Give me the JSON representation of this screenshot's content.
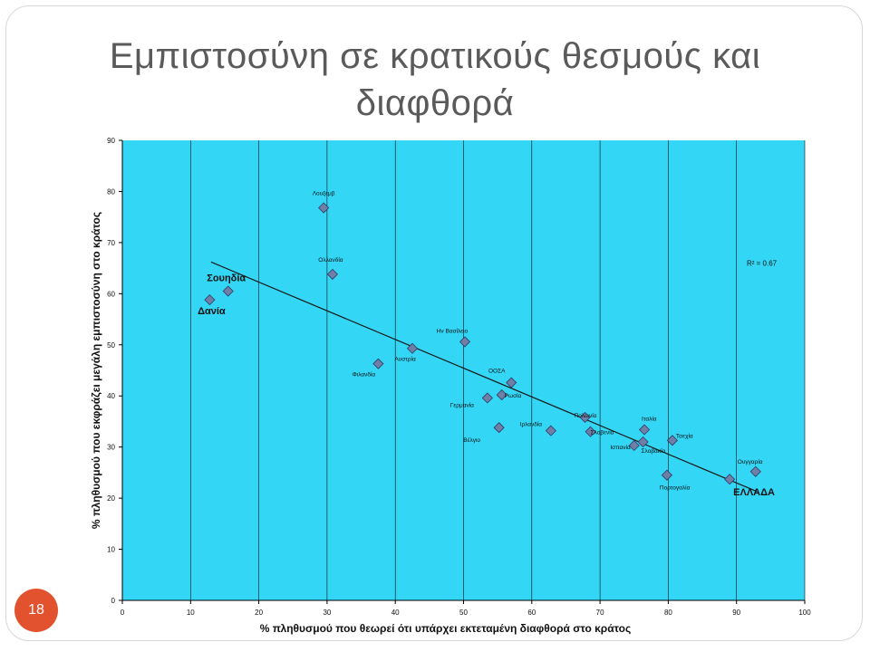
{
  "slide": {
    "title_line1": "Εμπιστοσύνη σε κρατικούς θεσμούς και",
    "title_line2": "διαφθορά",
    "number": "18"
  },
  "colors": {
    "plot_bg": "#33d6f5",
    "marker": "#6f7fa8",
    "marker_stroke": "#2e3a60",
    "grid": "#111111",
    "slide_number_bg": "#e2522f"
  },
  "chart_data": {
    "type": "scatter",
    "xlabel": "% πληθυσμού που θεωρεί ότι υπάρχει εκτεταμένη διαφθορά στο κράτος",
    "ylabel": "% πληθυσμού που εκφράζει μεγάλη εμπιστοσύνη στο κράτος",
    "xlim": [
      0,
      100
    ],
    "ylim": [
      0,
      90
    ],
    "xticks": [
      0,
      10,
      20,
      30,
      40,
      50,
      60,
      70,
      80,
      90,
      100
    ],
    "yticks": [
      0,
      10,
      20,
      30,
      40,
      50,
      60,
      70,
      80,
      90
    ],
    "grid": "vertical",
    "r_squared_label": "R² = 0.67",
    "trendline": {
      "x": [
        13,
        93
      ],
      "y": [
        66.2,
        21.3
      ]
    },
    "points": [
      {
        "label": "Λουξεμβ",
        "x": 29.5,
        "y": 76.8,
        "big": false
      },
      {
        "label": "Ολλανδία",
        "x": 30.8,
        "y": 63.8,
        "big": false
      },
      {
        "label": "Σουηδία",
        "x": 15.5,
        "y": 60.5,
        "big": true
      },
      {
        "label": "Δανία",
        "x": 12.8,
        "y": 58.8,
        "big": true
      },
      {
        "label": "Ην Βασίλειο",
        "x": 50.2,
        "y": 50.6,
        "big": false
      },
      {
        "label": "Αυστρία",
        "x": 42.5,
        "y": 49.3,
        "big": false
      },
      {
        "label": "Φιλανδία",
        "x": 37.5,
        "y": 46.3,
        "big": false
      },
      {
        "label": "ΟΟΣΑ",
        "x": 57.0,
        "y": 42.6,
        "big": false
      },
      {
        "label": "Γερμανία",
        "x": 53.5,
        "y": 39.6,
        "big": false
      },
      {
        "label": "Ρωσία",
        "x": 55.6,
        "y": 40.2,
        "big": false
      },
      {
        "label": "Βέλγιο",
        "x": 55.2,
        "y": 33.8,
        "big": false
      },
      {
        "label": "Ιρλανδία",
        "x": 62.8,
        "y": 33.2,
        "big": false
      },
      {
        "label": "Πολωνία",
        "x": 67.8,
        "y": 35.8,
        "big": false
      },
      {
        "label": "Σλοβενία",
        "x": 68.6,
        "y": 33.0,
        "big": false
      },
      {
        "label": "Ισπανία",
        "x": 75.0,
        "y": 30.3,
        "big": false
      },
      {
        "label": "Ιταλία",
        "x": 76.5,
        "y": 33.4,
        "big": false
      },
      {
        "label": "Σλοβακία",
        "x": 76.3,
        "y": 31.0,
        "big": false
      },
      {
        "label": "Τσεχία",
        "x": 80.6,
        "y": 31.3,
        "big": false
      },
      {
        "label": "Πορτογαλία",
        "x": 79.8,
        "y": 24.5,
        "big": false
      },
      {
        "label": "Ουγγαρία",
        "x": 92.8,
        "y": 25.2,
        "big": false
      },
      {
        "label": "ΕΛΛΑΔΑ",
        "x": 89.0,
        "y": 23.7,
        "big": true
      }
    ]
  }
}
